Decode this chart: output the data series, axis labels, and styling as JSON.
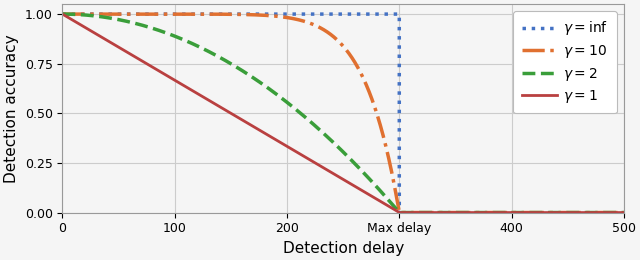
{
  "xlabel": "Detection delay",
  "ylabel": "Detection accuracy",
  "xlim": [
    0,
    500
  ],
  "ylim": [
    0.0,
    1.05
  ],
  "max_delay": 300,
  "yticks": [
    0.0,
    0.25,
    0.5,
    0.75,
    1.0
  ],
  "ytick_labels": [
    "0.00",
    "0.25",
    "0.50",
    "0.75",
    "1.00"
  ],
  "xticks": [
    0,
    100,
    200,
    300,
    400,
    500
  ],
  "xtick_labels": [
    "0",
    "100",
    "200",
    "Max delay",
    "400",
    "500"
  ],
  "series": [
    {
      "label": "$\\gamma = \\mathrm{inf}$",
      "color": "#4472C4",
      "linestyle": "dotted",
      "linewidth": 2.5,
      "gamma": "inf"
    },
    {
      "label": "$\\gamma = 10$",
      "color": "#E07030",
      "linestyle": "dashdot",
      "linewidth": 2.5,
      "gamma": 10
    },
    {
      "label": "$\\gamma = 2$",
      "color": "#3A9E3A",
      "linestyle": "dashed",
      "linewidth": 2.5,
      "gamma": 2
    },
    {
      "label": "$\\gamma = 1$",
      "color": "#B94040",
      "linestyle": "solid",
      "linewidth": 2.0,
      "gamma": 1
    }
  ],
  "background_color": "#f5f5f5",
  "grid_color": "#cccccc",
  "figsize": [
    6.4,
    2.6
  ],
  "dpi": 100
}
